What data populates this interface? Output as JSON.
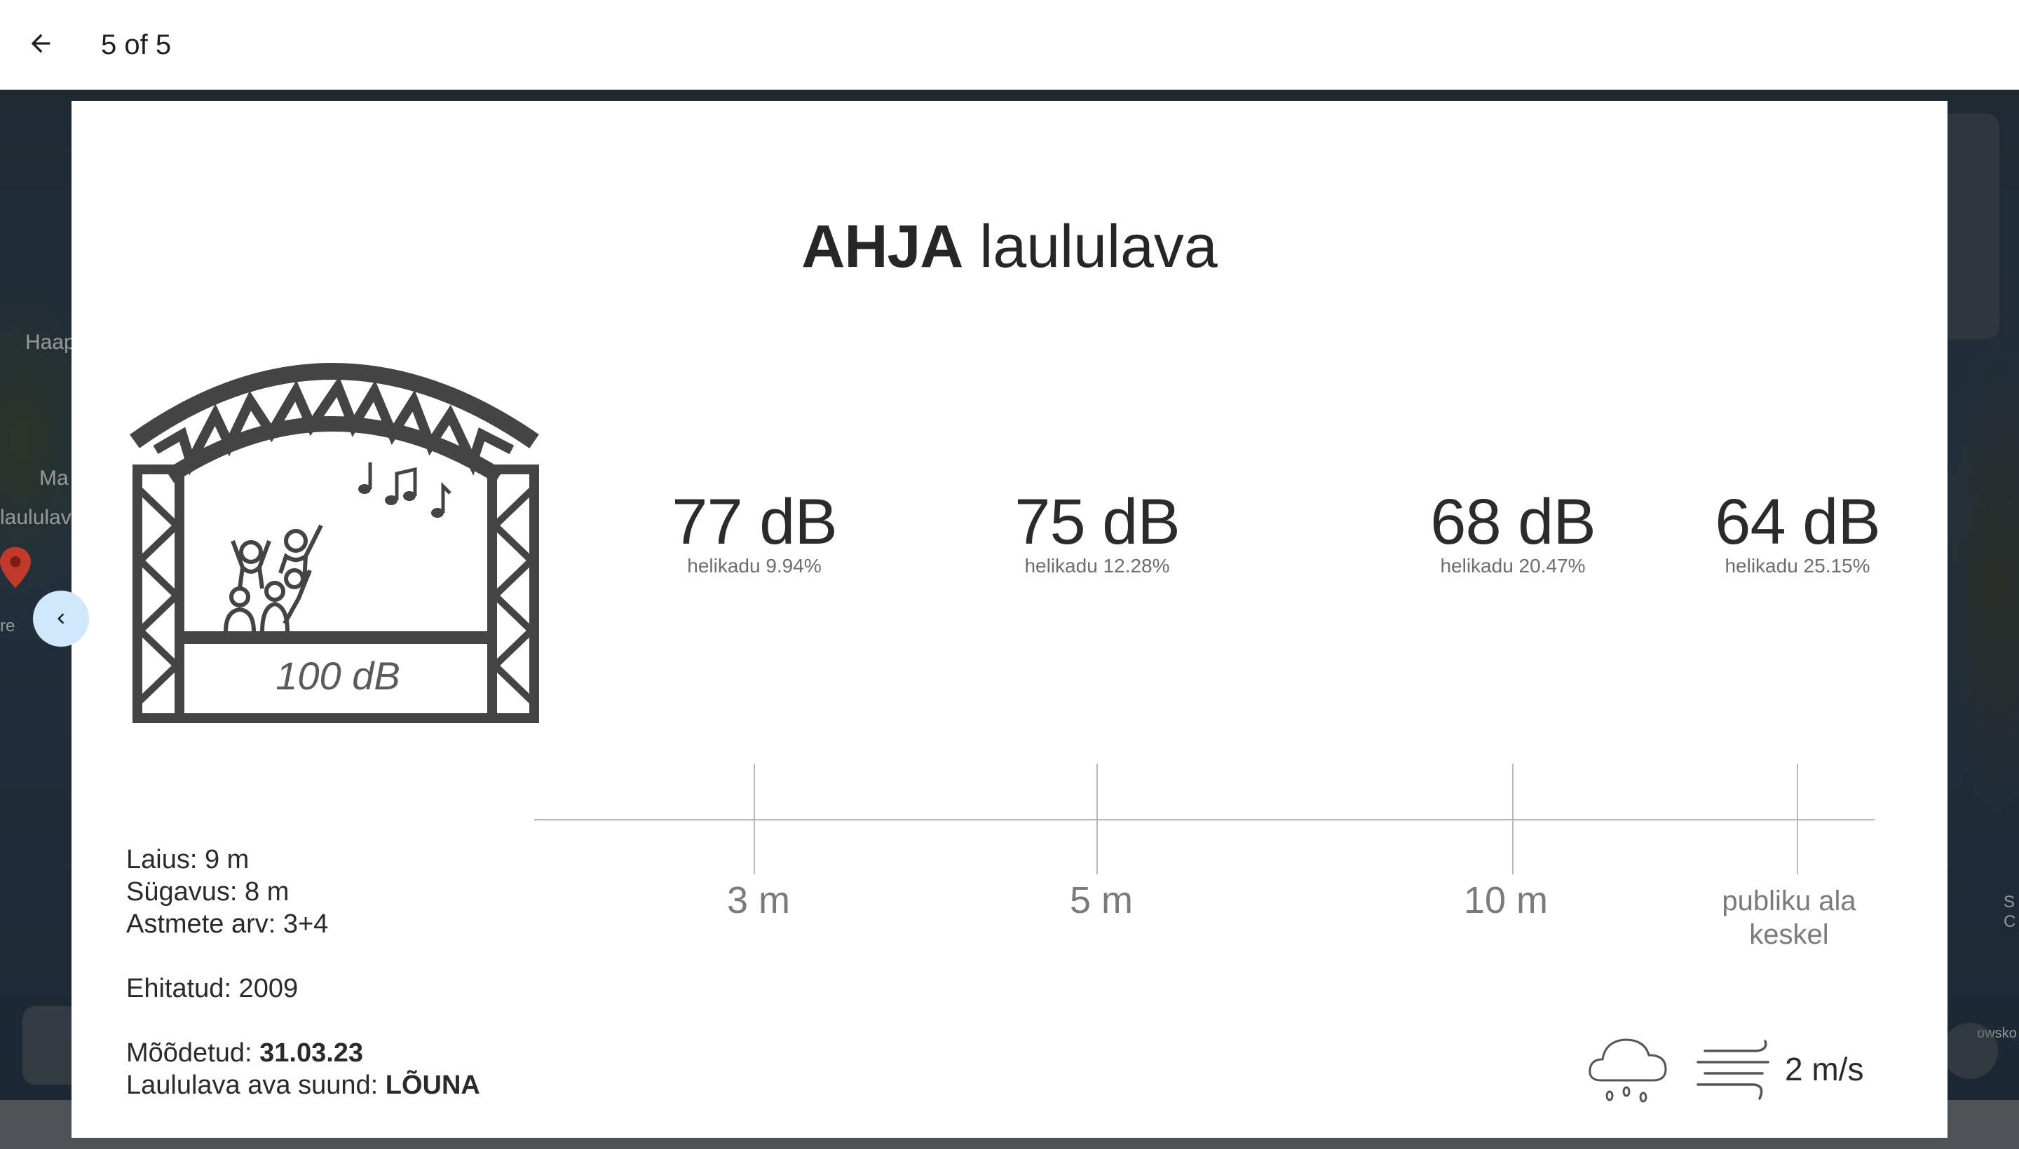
{
  "topbar": {
    "counter": "5 of 5"
  },
  "map": {
    "labels": [
      "Haap",
      "Ma",
      "laululav",
      "re",
      "S",
      "C",
      "owsko"
    ]
  },
  "card": {
    "title_bold": "AHJA",
    "title_rest": " laululava",
    "stage_db": "100 dB",
    "measurements": [
      {
        "db": "77 dB",
        "sub": "helikadu 9.94%",
        "distance": "3 m"
      },
      {
        "db": "75 dB",
        "sub": "helikadu 12.28%",
        "distance": "5 m"
      },
      {
        "db": "68 dB",
        "sub": "helikadu 20.47%",
        "distance": "10 m"
      },
      {
        "db": "64 dB",
        "sub": "helikadu 25.15%",
        "distance_line1": "publiku ala",
        "distance_line2": "keskel"
      }
    ],
    "info": {
      "width_label": "Laius: 9 m",
      "depth_label": "Sügavus: 8 m",
      "steps_label": "Astmete arv: 3+4",
      "built_label": "Ehitatud: 2009",
      "measured_prefix": "Mõõdetud: ",
      "measured_value": "31.03.23",
      "direction_prefix": "Laululava ava suund: ",
      "direction_value": "LÕUNA"
    },
    "weather": {
      "icon": "rain-cloud-icon",
      "wind_icon": "wind-icon",
      "wind_speed": "2 m/s"
    }
  },
  "colors": {
    "prev_button_bg": "#cfe8fb",
    "stage_gray": "#444444",
    "card_bg": "#ffffff"
  }
}
